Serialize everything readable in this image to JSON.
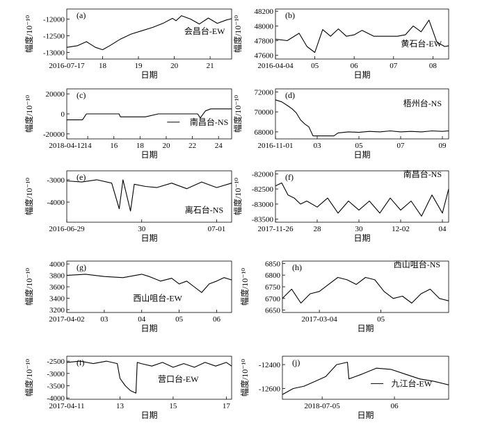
{
  "y_axis_label": "幅度/10⁻¹⁰",
  "x_axis_label": "日期",
  "chart_data": [
    {
      "type": "line",
      "panel": "(a)",
      "station": "会昌台-EW",
      "ylim": [
        -13200,
        -11700
      ],
      "yticks": [
        -12000,
        -12500,
        -13000
      ],
      "xlim": [
        0,
        4.6
      ],
      "xticks": [
        {
          "v": 0,
          "l": "2016-07-17"
        },
        {
          "v": 1,
          "l": "18"
        },
        {
          "v": 2,
          "l": "19"
        },
        {
          "v": 3,
          "l": "20"
        },
        {
          "v": 4,
          "l": "21"
        }
      ],
      "series": [
        {
          "name": "会昌台-EW",
          "x": [
            0,
            0.3,
            0.55,
            0.8,
            1.0,
            1.2,
            1.5,
            1.8,
            2.1,
            2.4,
            2.7,
            2.95,
            3.05,
            3.2,
            3.45,
            3.7,
            3.95,
            4.2,
            4.45,
            4.6
          ],
          "y": [
            -12850,
            -12800,
            -12680,
            -12850,
            -12920,
            -12800,
            -12600,
            -12450,
            -12350,
            -12250,
            -12120,
            -11980,
            -12050,
            -11900,
            -12000,
            -12150,
            -11970,
            -12130,
            -12030,
            -11990
          ]
        }
      ]
    },
    {
      "type": "line",
      "panel": "(b)",
      "station": "黄石台-EW",
      "ylim": [
        47550,
        48230
      ],
      "yticks": [
        48200,
        48000,
        47800,
        47600
      ],
      "xlim": [
        0,
        4.4
      ],
      "xticks": [
        {
          "v": 0,
          "l": "2016-04-04"
        },
        {
          "v": 1,
          "l": "05"
        },
        {
          "v": 2,
          "l": "06"
        },
        {
          "v": 3,
          "l": "07"
        },
        {
          "v": 4,
          "l": "08"
        }
      ],
      "series": [
        {
          "name": "黄石台-EW",
          "x": [
            0,
            0.3,
            0.6,
            0.8,
            1.0,
            1.2,
            1.4,
            1.6,
            1.8,
            2.0,
            2.2,
            2.5,
            2.8,
            3.1,
            3.3,
            3.5,
            3.7,
            3.9,
            4.1,
            4.3,
            4.4
          ],
          "y": [
            47820,
            47800,
            47900,
            47720,
            47640,
            47950,
            47860,
            47960,
            47860,
            47880,
            47940,
            47860,
            47860,
            47860,
            47880,
            48000,
            47920,
            48080,
            47780,
            47720,
            47730
          ]
        }
      ]
    },
    {
      "type": "line",
      "panel": "(c)",
      "station": "南昌台-NS",
      "ylim": [
        -25000,
        25000
      ],
      "yticks": [
        20000,
        0,
        -20000
      ],
      "xlim": [
        0,
        6.3
      ],
      "xticks": [
        {
          "v": 0,
          "l": "2018-04-12"
        },
        {
          "v": 0.8,
          "l": "14"
        },
        {
          "v": 1.8,
          "l": "16"
        },
        {
          "v": 2.8,
          "l": "18"
        },
        {
          "v": 3.8,
          "l": "20"
        },
        {
          "v": 4.8,
          "l": "22"
        },
        {
          "v": 5.8,
          "l": "24"
        }
      ],
      "series": [
        {
          "name": "南昌台-NS",
          "x": [
            0,
            0.6,
            0.7,
            0.75,
            1.0,
            1.5,
            2.0,
            2.05,
            2.2,
            2.3,
            3.0,
            3.5,
            4.0,
            4.5,
            5.0,
            5.1,
            5.3,
            5.5,
            6.3
          ],
          "y": [
            -6000,
            -6000,
            -2000,
            0,
            0,
            0,
            0,
            -3000,
            -3000,
            -3000,
            -3000,
            0,
            0,
            0,
            0,
            -4000,
            3000,
            5000,
            5000
          ]
        }
      ]
    },
    {
      "type": "line",
      "panel": "(d)",
      "station": "梧州台-NS",
      "ylim": [
        67300,
        72300
      ],
      "yticks": [
        72000,
        70000,
        68000
      ],
      "xlim": [
        0,
        8.3
      ],
      "xticks": [
        {
          "v": 0,
          "l": "2016-11-01"
        },
        {
          "v": 2,
          "l": "03"
        },
        {
          "v": 4,
          "l": "05"
        },
        {
          "v": 6,
          "l": "07"
        },
        {
          "v": 8,
          "l": "09"
        }
      ],
      "series": [
        {
          "name": "梧州台-NS",
          "x": [
            0,
            0.3,
            0.6,
            0.8,
            1.0,
            1.2,
            1.4,
            1.6,
            1.8,
            2.2,
            2.8,
            3.0,
            3.5,
            4.0,
            4.5,
            5.0,
            5.5,
            6.0,
            6.5,
            7.0,
            7.5,
            8.0,
            8.3
          ],
          "y": [
            71200,
            71000,
            70600,
            70300,
            69900,
            69200,
            68800,
            68500,
            67600,
            67600,
            67600,
            67900,
            68000,
            67950,
            68050,
            68000,
            68100,
            68000,
            68050,
            68000,
            68100,
            68050,
            68100
          ]
        }
      ]
    },
    {
      "type": "line",
      "panel": "(e)",
      "station": "离石台-NS",
      "ylim": [
        -4900,
        -2600
      ],
      "yticks": [
        -3000,
        -4000
      ],
      "xlim": [
        0,
        2.2
      ],
      "xticks": [
        {
          "v": 0,
          "l": "2016-06-29"
        },
        {
          "v": 1,
          "l": "30"
        },
        {
          "v": 2,
          "l": "07-01"
        }
      ],
      "series": [
        {
          "name": "离石台-NS",
          "x": [
            0,
            0.2,
            0.4,
            0.6,
            0.7,
            0.75,
            0.85,
            0.9,
            1.05,
            1.2,
            1.4,
            1.6,
            1.8,
            2.0,
            2.2
          ],
          "y": [
            -3050,
            -3100,
            -3000,
            -3150,
            -4300,
            -3000,
            -4400,
            -3200,
            -3300,
            -3350,
            -3150,
            -3400,
            -3100,
            -3350,
            -3150
          ]
        }
      ]
    },
    {
      "type": "line",
      "panel": "(f)",
      "station": "南昌台-NS",
      "ylim": [
        -83600,
        -81900
      ],
      "yticks": [
        -82000,
        -82500,
        -83000,
        -83500
      ],
      "xlim": [
        0,
        8.3
      ],
      "xticks": [
        {
          "v": 0,
          "l": "2017-11-26"
        },
        {
          "v": 2,
          "l": "28"
        },
        {
          "v": 4,
          "l": "30"
        },
        {
          "v": 6,
          "l": "12-02"
        },
        {
          "v": 8,
          "l": "04"
        }
      ],
      "series": [
        {
          "name": "南昌台-NS",
          "x": [
            0,
            0.3,
            0.6,
            0.9,
            1.2,
            1.5,
            2.0,
            2.5,
            3.0,
            3.5,
            4.0,
            4.5,
            5.0,
            5.5,
            6.0,
            6.5,
            7.0,
            7.5,
            8.0,
            8.3
          ],
          "y": [
            -82400,
            -82300,
            -82700,
            -82800,
            -83000,
            -82900,
            -83100,
            -82800,
            -83300,
            -82900,
            -83200,
            -82900,
            -83300,
            -82800,
            -83200,
            -82900,
            -83400,
            -82700,
            -83300,
            -82500
          ]
        }
      ]
    },
    {
      "type": "line",
      "panel": "(g)",
      "station": "西山咀台-EW",
      "ylim": [
        3150,
        4050
      ],
      "yticks": [
        4000,
        3800,
        3600,
        3400,
        3200
      ],
      "xlim": [
        0,
        4.4
      ],
      "xticks": [
        {
          "v": 0,
          "l": "2017-04-02"
        },
        {
          "v": 1,
          "l": "03"
        },
        {
          "v": 2,
          "l": "04"
        },
        {
          "v": 3,
          "l": "05"
        },
        {
          "v": 4,
          "l": "06"
        }
      ],
      "series": [
        {
          "name": "西山咀台-EW",
          "x": [
            0,
            0.5,
            1.0,
            1.5,
            2.0,
            2.2,
            2.5,
            2.8,
            3.0,
            3.2,
            3.4,
            3.6,
            3.8,
            4.0,
            4.2,
            4.4
          ],
          "y": [
            3800,
            3820,
            3780,
            3760,
            3820,
            3780,
            3700,
            3750,
            3650,
            3700,
            3600,
            3500,
            3650,
            3700,
            3760,
            3720
          ]
        }
      ]
    },
    {
      "type": "line",
      "panel": "(h)",
      "station": "西山咀台-NS",
      "ylim": [
        6640,
        6860
      ],
      "yticks": [
        6850,
        6800,
        6750,
        6700,
        6650
      ],
      "xlim": [
        0,
        2.7
      ],
      "xticks": [
        {
          "v": 0.6,
          "l": "2017-03-04"
        },
        {
          "v": 1.6,
          "l": "05"
        }
      ],
      "series": [
        {
          "name": "西山咀台-NS",
          "x": [
            0,
            0.15,
            0.3,
            0.45,
            0.6,
            0.75,
            0.9,
            1.05,
            1.2,
            1.35,
            1.5,
            1.65,
            1.8,
            1.95,
            2.1,
            2.25,
            2.4,
            2.55,
            2.7
          ],
          "y": [
            6700,
            6740,
            6680,
            6720,
            6730,
            6760,
            6790,
            6780,
            6760,
            6790,
            6780,
            6730,
            6700,
            6710,
            6680,
            6720,
            6740,
            6700,
            6690
          ]
        }
      ]
    },
    {
      "type": "line",
      "panel": "(i)",
      "station": "营口台-EW",
      "ylim": [
        -4050,
        -2300
      ],
      "yticks": [
        -2500,
        -3000,
        -3500,
        -4000
      ],
      "xlim": [
        0,
        6.2
      ],
      "xticks": [
        {
          "v": 0,
          "l": "2017-04-11"
        },
        {
          "v": 2,
          "l": "13"
        },
        {
          "v": 4,
          "l": "15"
        },
        {
          "v": 6,
          "l": "17"
        }
      ],
      "series": [
        {
          "name": "营口台-EW",
          "x": [
            0,
            0.5,
            1.0,
            1.5,
            1.9,
            2.0,
            2.2,
            2.4,
            2.6,
            2.65,
            2.8,
            3.2,
            3.6,
            4.0,
            4.4,
            4.8,
            5.2,
            5.6,
            6.0,
            6.2
          ],
          "y": [
            -2550,
            -2500,
            -2600,
            -2500,
            -2600,
            -3200,
            -3500,
            -3700,
            -3800,
            -2550,
            -2600,
            -2700,
            -2550,
            -2750,
            -2600,
            -2750,
            -2550,
            -2700,
            -2550,
            -2700
          ]
        }
      ]
    },
    {
      "type": "line",
      "panel": "(j)",
      "station": "九江台-EW",
      "ylim": [
        -12690,
        -12330
      ],
      "yticks": [
        -12400,
        -12600
      ],
      "xlim": [
        0,
        2.3
      ],
      "xticks": [
        {
          "v": 0.55,
          "l": "2018-07-05"
        },
        {
          "v": 1.55,
          "l": "06"
        }
      ],
      "series": [
        {
          "name": "九江台-EW",
          "x": [
            0,
            0.15,
            0.3,
            0.45,
            0.6,
            0.75,
            0.9,
            0.92,
            1.1,
            1.3,
            1.5,
            1.7,
            1.9,
            2.1,
            2.3
          ],
          "y": [
            -12650,
            -12600,
            -12580,
            -12540,
            -12500,
            -12400,
            -12380,
            -12520,
            -12480,
            -12430,
            -12440,
            -12480,
            -12520,
            -12540,
            -12570
          ]
        }
      ]
    }
  ]
}
